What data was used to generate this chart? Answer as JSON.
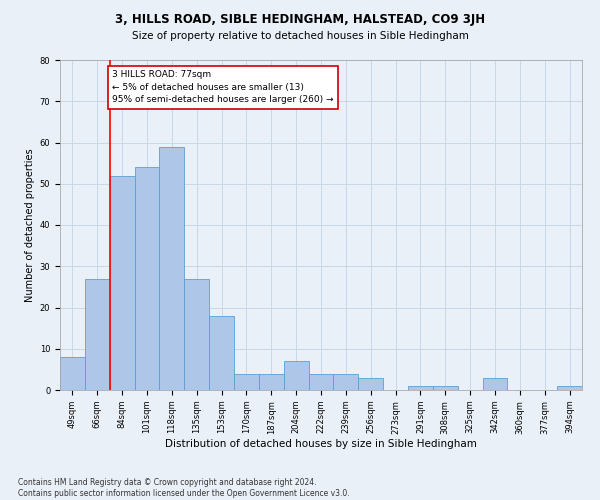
{
  "title1": "3, HILLS ROAD, SIBLE HEDINGHAM, HALSTEAD, CO9 3JH",
  "title2": "Size of property relative to detached houses in Sible Hedingham",
  "xlabel": "Distribution of detached houses by size in Sible Hedingham",
  "ylabel": "Number of detached properties",
  "footnote": "Contains HM Land Registry data © Crown copyright and database right 2024.\nContains public sector information licensed under the Open Government Licence v3.0.",
  "bin_labels": [
    "49sqm",
    "66sqm",
    "84sqm",
    "101sqm",
    "118sqm",
    "135sqm",
    "153sqm",
    "170sqm",
    "187sqm",
    "204sqm",
    "222sqm",
    "239sqm",
    "256sqm",
    "273sqm",
    "291sqm",
    "308sqm",
    "325sqm",
    "342sqm",
    "360sqm",
    "377sqm",
    "394sqm"
  ],
  "bar_heights": [
    8,
    27,
    52,
    54,
    59,
    27,
    18,
    4,
    4,
    7,
    4,
    4,
    3,
    0,
    1,
    1,
    0,
    3,
    0,
    0,
    1
  ],
  "bar_color": "#aec6e8",
  "bar_edge_color": "#5a9fd4",
  "grid_color": "#c8d8e8",
  "bg_color": "#eaf0f8",
  "annotation_text": "3 HILLS ROAD: 77sqm\n← 5% of detached houses are smaller (13)\n95% of semi-detached houses are larger (260) →",
  "annotation_box_color": "#ffffff",
  "annotation_box_edge": "#cc0000",
  "redline_x": 1.5,
  "ylim": [
    0,
    80
  ],
  "yticks": [
    0,
    10,
    20,
    30,
    40,
    50,
    60,
    70,
    80
  ],
  "title1_fontsize": 8.5,
  "title2_fontsize": 7.5,
  "xlabel_fontsize": 7.5,
  "ylabel_fontsize": 7.0,
  "tick_fontsize": 6.0,
  "annot_fontsize": 6.5,
  "footnote_fontsize": 5.5
}
